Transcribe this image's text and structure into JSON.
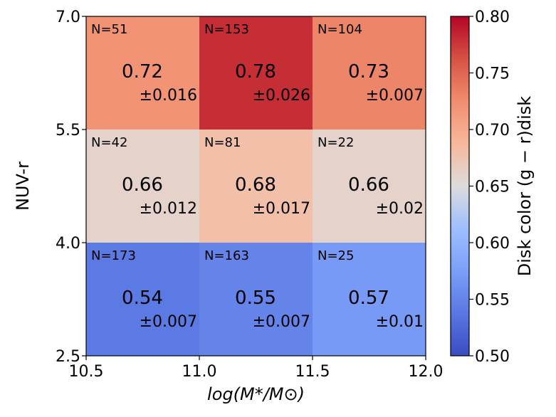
{
  "chart_data": {
    "type": "heatmap",
    "xlabel": "log(M*/M⊙)",
    "ylabel": "NUV-r",
    "x_bins": [
      10.5,
      11.0,
      11.5,
      12.0
    ],
    "y_bins": [
      2.5,
      4.0,
      5.5,
      7.0
    ],
    "xlim": [
      10.5,
      12.0
    ],
    "ylim": [
      2.5,
      7.0
    ],
    "x_ticks": [
      "10.5",
      "11.0",
      "11.5",
      "12.0"
    ],
    "y_ticks": [
      "2.5",
      "4.0",
      "5.5",
      "7.0"
    ],
    "cells": [
      {
        "x": [
          10.5,
          11.0
        ],
        "y": [
          5.5,
          7.0
        ],
        "n": "N=51",
        "value": 0.72,
        "value_text": "0.72",
        "err_text": "±0.016"
      },
      {
        "x": [
          11.0,
          11.5
        ],
        "y": [
          5.5,
          7.0
        ],
        "n": "N=153",
        "value": 0.78,
        "value_text": "0.78",
        "err_text": "±0.026"
      },
      {
        "x": [
          11.5,
          12.0
        ],
        "y": [
          5.5,
          7.0
        ],
        "n": "N=104",
        "value": 0.73,
        "value_text": "0.73",
        "err_text": "±0.007"
      },
      {
        "x": [
          10.5,
          11.0
        ],
        "y": [
          4.0,
          5.5
        ],
        "n": "N=42",
        "value": 0.66,
        "value_text": "0.66",
        "err_text": "±0.012"
      },
      {
        "x": [
          11.0,
          11.5
        ],
        "y": [
          4.0,
          5.5
        ],
        "n": "N=81",
        "value": 0.68,
        "value_text": "0.68",
        "err_text": "±0.017"
      },
      {
        "x": [
          11.5,
          12.0
        ],
        "y": [
          4.0,
          5.5
        ],
        "n": "N=22",
        "value": 0.66,
        "value_text": "0.66",
        "err_text": "±0.02"
      },
      {
        "x": [
          10.5,
          11.0
        ],
        "y": [
          2.5,
          4.0
        ],
        "n": "N=173",
        "value": 0.54,
        "value_text": "0.54",
        "err_text": "±0.007"
      },
      {
        "x": [
          11.0,
          11.5
        ],
        "y": [
          2.5,
          4.0
        ],
        "n": "N=163",
        "value": 0.55,
        "value_text": "0.55",
        "err_text": "±0.007"
      },
      {
        "x": [
          11.5,
          12.0
        ],
        "y": [
          2.5,
          4.0
        ],
        "n": "N=25",
        "value": 0.57,
        "value_text": "0.57",
        "err_text": "±0.01"
      }
    ],
    "colorbar": {
      "label": "Disk color (g − r)disk",
      "colormap": "coolwarm",
      "range": [
        0.5,
        0.8
      ],
      "ticks": [
        "0.50",
        "0.55",
        "0.60",
        "0.65",
        "0.70",
        "0.75",
        "0.80"
      ]
    }
  }
}
